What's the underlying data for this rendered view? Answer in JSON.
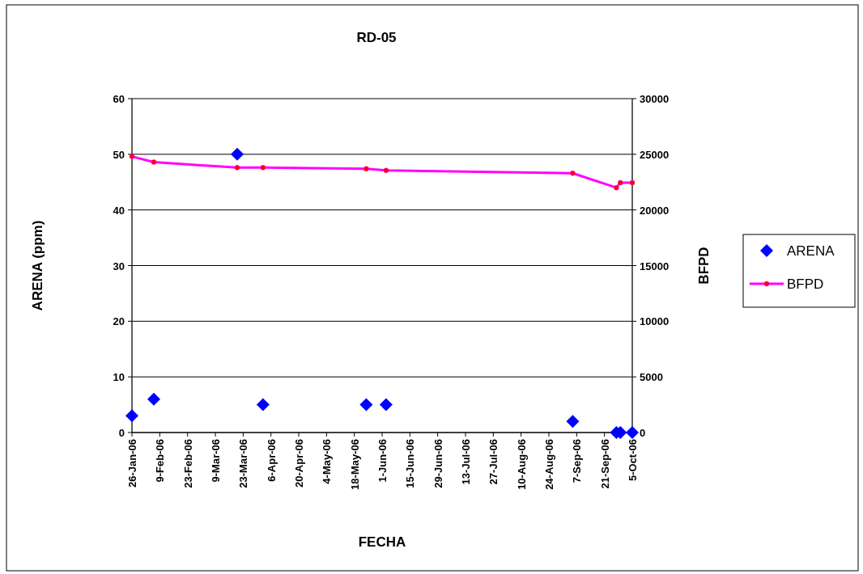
{
  "chart_data": {
    "type": "scatter",
    "title": "RD-05",
    "xlabel": "FECHA",
    "ylabel": "ARENA (ppm)",
    "y2label": "BFPD",
    "xlim": [
      "2006-01-26",
      "2006-10-05"
    ],
    "xticks": [
      {
        "value": "2006-01-26",
        "label": "26-Jan-06"
      },
      {
        "value": "2006-02-09",
        "label": "9-Feb-06"
      },
      {
        "value": "2006-02-23",
        "label": "23-Feb-06"
      },
      {
        "value": "2006-03-09",
        "label": "9-Mar-06"
      },
      {
        "value": "2006-03-23",
        "label": "23-Mar-06"
      },
      {
        "value": "2006-04-06",
        "label": "6-Apr-06"
      },
      {
        "value": "2006-04-20",
        "label": "20-Apr-06"
      },
      {
        "value": "2006-05-04",
        "label": "4-May-06"
      },
      {
        "value": "2006-05-18",
        "label": "18-May-06"
      },
      {
        "value": "2006-06-01",
        "label": "1-Jun-06"
      },
      {
        "value": "2006-06-15",
        "label": "15-Jun-06"
      },
      {
        "value": "2006-06-29",
        "label": "29-Jun-06"
      },
      {
        "value": "2006-07-13",
        "label": "13-Jul-06"
      },
      {
        "value": "2006-07-27",
        "label": "27-Jul-06"
      },
      {
        "value": "2006-08-10",
        "label": "10-Aug-06"
      },
      {
        "value": "2006-08-24",
        "label": "24-Aug-06"
      },
      {
        "value": "2006-09-07",
        "label": "7-Sep-06"
      },
      {
        "value": "2006-09-21",
        "label": "21-Sep-06"
      },
      {
        "value": "2006-10-05",
        "label": "5-Oct-06"
      }
    ],
    "ylim": [
      0,
      60
    ],
    "yticks": [
      0,
      10,
      20,
      30,
      40,
      50,
      60
    ],
    "y2lim": [
      0,
      30000
    ],
    "y2ticks": [
      0,
      5000,
      10000,
      15000,
      20000,
      25000,
      30000
    ],
    "grid": "y",
    "legend": "right",
    "x": [
      "2006-01-26",
      "2006-02-06",
      "2006-03-20",
      "2006-04-02",
      "2006-05-24",
      "2006-06-03",
      "2006-09-05",
      "2006-09-27",
      "2006-09-29",
      "2006-10-05"
    ],
    "series": [
      {
        "name": "ARENA",
        "type": "scatter",
        "color": "#0000ff",
        "marker": "diamond",
        "values": [
          3,
          6,
          50,
          5,
          5,
          5,
          2,
          0,
          0,
          0
        ]
      },
      {
        "name": "BFPD",
        "type": "line",
        "axis": "y2",
        "color": "#ff00ff",
        "marker": "circle",
        "values": [
          24800,
          24300,
          23800,
          23800,
          23700,
          23550,
          23300,
          22000,
          22450,
          22450
        ]
      }
    ]
  }
}
